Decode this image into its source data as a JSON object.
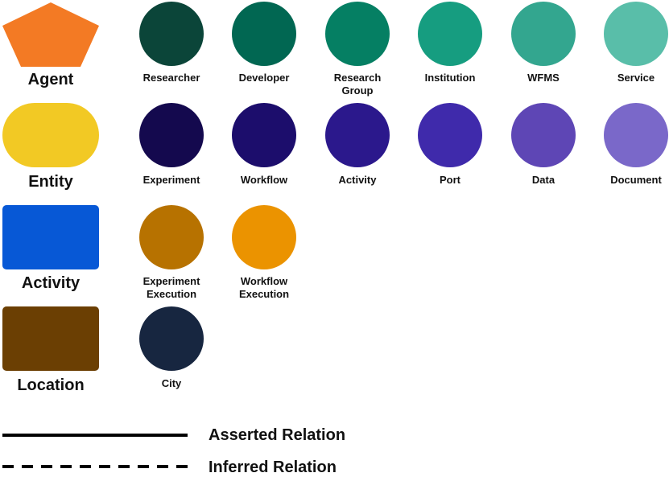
{
  "categories": [
    {
      "label": "Agent",
      "color": "#F37A24",
      "shape": "pentagon"
    },
    {
      "label": "Entity",
      "color": "#F2C924",
      "shape": "stadium"
    },
    {
      "label": "Activity",
      "color": "#0758D6",
      "shape": "rounded-rectangle"
    },
    {
      "label": "Location",
      "color": "#6B3F03",
      "shape": "rounded-rectangle"
    }
  ],
  "rows": [
    [
      {
        "label": "Researcher",
        "color": "#0B4539"
      },
      {
        "label": "Developer",
        "color": "#016752"
      },
      {
        "label": "Research\nGroup",
        "color": "#057F63"
      },
      {
        "label": "Institution",
        "color": "#169D80"
      },
      {
        "label": "WFMS",
        "color": "#33A68F"
      },
      {
        "label": "Service",
        "color": "#59BEA9"
      }
    ],
    [
      {
        "label": "Experiment",
        "color": "#14094E"
      },
      {
        "label": "Workflow",
        "color": "#1C0D6C"
      },
      {
        "label": "Activity",
        "color": "#2B188C"
      },
      {
        "label": "Port",
        "color": "#3F2AAB"
      },
      {
        "label": "Data",
        "color": "#5E46B5"
      },
      {
        "label": "Document",
        "color": "#7A68C9"
      }
    ],
    [
      {
        "label": "Experiment\nExecution",
        "color": "#B77200"
      },
      {
        "label": "Workflow\nExecution",
        "color": "#EB9300"
      }
    ],
    [
      {
        "label": "City",
        "color": "#172640"
      }
    ]
  ],
  "legend": [
    {
      "label": "Asserted Relation",
      "style": "solid"
    },
    {
      "label": "Inferred Relation",
      "style": "dashed"
    }
  ]
}
